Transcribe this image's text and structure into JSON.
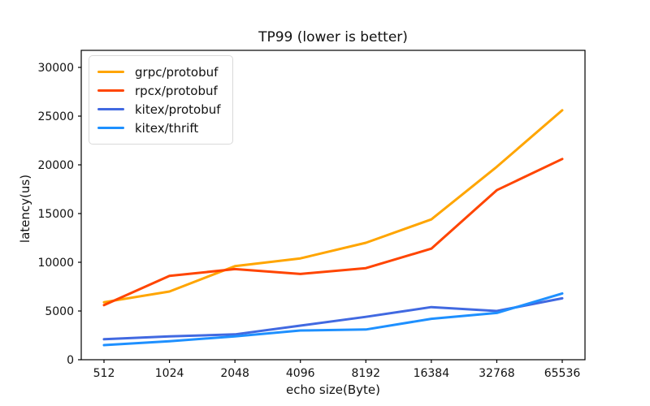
{
  "figure": {
    "background": "#ffffff",
    "axis_color": "#000000",
    "legend_border_color": "#d9d9d9"
  },
  "chart_data": {
    "type": "line",
    "title": "TP99 (lower is better)",
    "xlabel": "echo size(Byte)",
    "ylabel": "latency(us)",
    "categories": [
      "512",
      "1024",
      "2048",
      "4096",
      "8192",
      "16384",
      "32768",
      "65536"
    ],
    "yticks": [
      0,
      5000,
      10000,
      15000,
      20000,
      25000,
      30000
    ],
    "ylim": [
      0,
      31750
    ],
    "grid": false,
    "legend_position": "upper-left",
    "series": [
      {
        "name": "grpc/protobuf",
        "color": "#FFA500",
        "values": [
          5900,
          7000,
          9600,
          10400,
          12000,
          14400,
          19800,
          25600
        ]
      },
      {
        "name": "rpcx/protobuf",
        "color": "#FF4500",
        "values": [
          5600,
          8600,
          9300,
          8800,
          9400,
          11400,
          17400,
          20600
        ]
      },
      {
        "name": "kitex/protobuf",
        "color": "#4169E1",
        "values": [
          2100,
          2400,
          2600,
          3500,
          4400,
          5400,
          5000,
          6300
        ]
      },
      {
        "name": "kitex/thrift",
        "color": "#1E90FF",
        "values": [
          1500,
          1900,
          2400,
          3000,
          3100,
          4200,
          4800,
          6800
        ]
      }
    ]
  }
}
